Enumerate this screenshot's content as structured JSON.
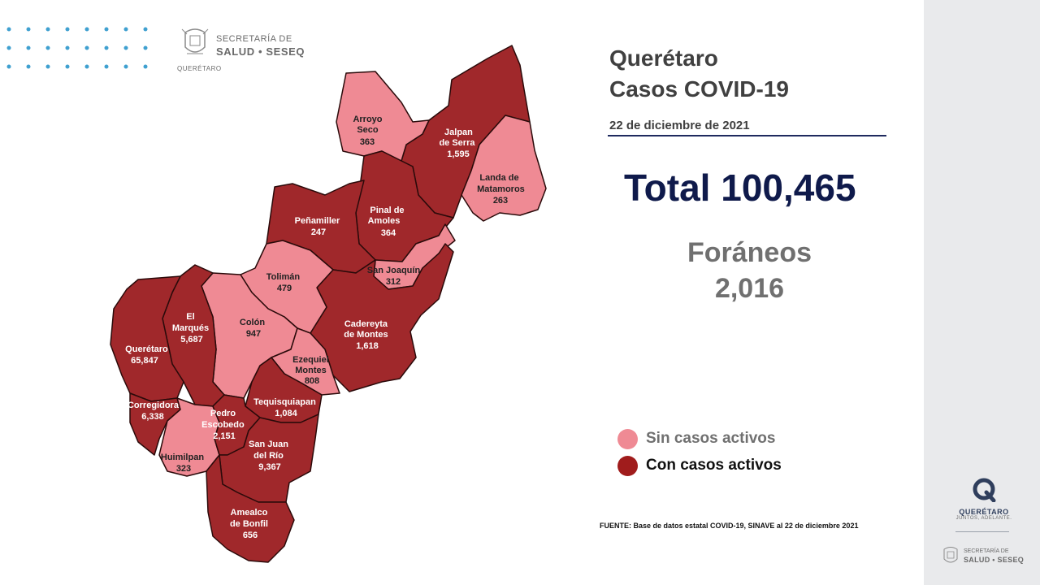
{
  "header": {
    "org_line1": "SECRETARÍA DE",
    "org_line2": "SALUD • SESEQ",
    "state_name": "QUERÉTARO"
  },
  "title": {
    "line1": "Querétaro",
    "line2": "Casos COVID-19",
    "date": "22 de diciembre de 2021"
  },
  "total": "Total 100,465",
  "foraneos": {
    "label": "Foráneos",
    "value": "2,016"
  },
  "legend": [
    {
      "label": "Sin casos activos",
      "color": "#ef8a94",
      "text_color": "#707070"
    },
    {
      "label": "Con casos activos",
      "color": "#a01c1c",
      "text_color": "#111111"
    }
  ],
  "colors": {
    "sin_casos_activos": "#ef8a94",
    "con_casos_activos": "#a0282b",
    "border": "#2a0a0a",
    "accent": "#0f1a4b"
  },
  "municipalities": [
    {
      "name": "Arroyo Seco",
      "cases": "363",
      "status": "sin_casos_activos"
    },
    {
      "name": "Jalpan de Serra",
      "cases": "1,595",
      "status": "con_casos_activos"
    },
    {
      "name": "Landa de Matamoros",
      "cases": "263",
      "status": "sin_casos_activos"
    },
    {
      "name": "Pinal de Amoles",
      "cases": "364",
      "status": "con_casos_activos"
    },
    {
      "name": "Peñamiller",
      "cases": "247",
      "status": "con_casos_activos"
    },
    {
      "name": "San Joaquín",
      "cases": "312",
      "status": "sin_casos_activos"
    },
    {
      "name": "Tolimán",
      "cases": "479",
      "status": "sin_casos_activos"
    },
    {
      "name": "Cadereyta de Montes",
      "cases": "1,618",
      "status": "con_casos_activos"
    },
    {
      "name": "El Marqués",
      "cases": "5,687",
      "status": "con_casos_activos"
    },
    {
      "name": "Colón",
      "cases": "947",
      "status": "sin_casos_activos"
    },
    {
      "name": "Querétaro",
      "cases": "65,847",
      "status": "con_casos_activos"
    },
    {
      "name": "Ezequiel Montes",
      "cases": "808",
      "status": "sin_casos_activos"
    },
    {
      "name": "Tequisquiapan",
      "cases": "1,084",
      "status": "con_casos_activos"
    },
    {
      "name": "Corregidora",
      "cases": "6,338",
      "status": "con_casos_activos"
    },
    {
      "name": "Pedro Escobedo",
      "cases": "2,151",
      "status": "con_casos_activos"
    },
    {
      "name": "Huimilpan",
      "cases": "323",
      "status": "sin_casos_activos"
    },
    {
      "name": "San Juan del Río",
      "cases": "9,367",
      "status": "con_casos_activos"
    },
    {
      "name": "Amealco de Bonfil",
      "cases": "656",
      "status": "con_casos_activos"
    }
  ],
  "labels": {
    "arroyo_1": "Arroyo",
    "arroyo_2": "Seco",
    "arroyo_n": "363",
    "jalpan_1": "Jalpan",
    "jalpan_2": "de Serra",
    "jalpan_n": "1,595",
    "landa_1": "Landa de",
    "landa_2": "Matamoros",
    "landa_n": "263",
    "pinal_1": "Pinal de",
    "pinal_2": "Amoles",
    "pinal_n": "364",
    "penam_1": "Peñamiller",
    "penam_n": "247",
    "sanjoa_1": "San Joaquín",
    "sanjoa_n": "312",
    "toliman_1": "Tolimán",
    "toliman_n": "479",
    "cader_1": "Cadereyta",
    "cader_2": "de Montes",
    "cader_n": "1,618",
    "marq_1": "El",
    "marq_2": "Marqués",
    "marq_n": "5,687",
    "colon_1": "Colón",
    "colon_n": "947",
    "qro_1": "Querétaro",
    "qro_n": "65,847",
    "ezeq_1": "Ezequiel",
    "ezeq_2": "Montes",
    "ezeq_n": "808",
    "tequis_1": "Tequisquiapan",
    "tequis_n": "1,084",
    "correg_1": "Corregidora",
    "correg_n": "6,338",
    "pedro_1": "Pedro",
    "pedro_2": "Escobedo",
    "pedro_n": "2,151",
    "huim_1": "Huimilpan",
    "huim_n": "323",
    "sjr_1": "San Juan",
    "sjr_2": "del Río",
    "sjr_n": "9,367",
    "amea_1": "Amealco",
    "amea_2": "de Bonfil",
    "amea_n": "656"
  },
  "source": "FUENTE: Base de datos estatal COVID-19, SINAVE al 22 de diciembre 2021",
  "sidebar": {
    "brand_name": "QUERÉTARO",
    "slogan": "JUNTOS, ADELANTE.",
    "org_line1": "SECRETARÍA DE",
    "org_line2": "SALUD • SESEQ"
  }
}
